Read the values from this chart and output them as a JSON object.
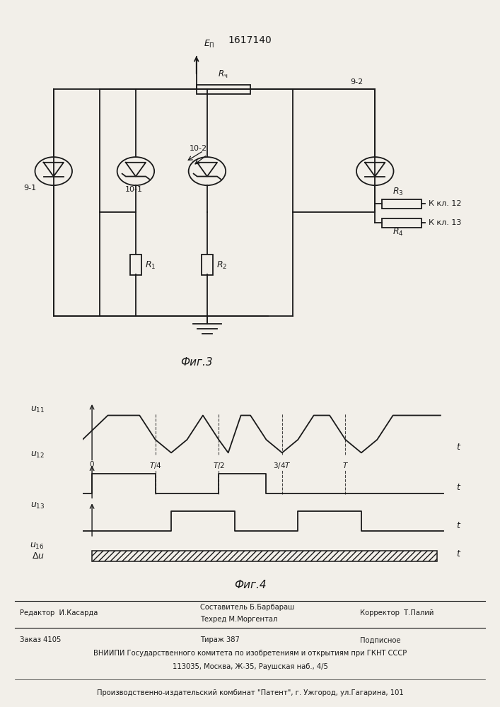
{
  "title": "1617140",
  "fig3_caption": "Фиг.3",
  "fig4_caption": "Фиг.4",
  "bg_color": "#f2efe9",
  "line_color": "#1a1a1a",
  "footer_editor": "Редактор  И.Касарда",
  "footer_author": "Составитель Б.Барбараш",
  "footer_tech": "Техред М.Моргентал",
  "footer_corrector": "Корректор  Т.Палий",
  "footer_order": "Заказ 4105",
  "footer_tirazh": "Тираж 387",
  "footer_podp": "Подписное",
  "footer_vniip1": "ВНИИПИ Государственного комитета по изобретениям и открытиям при ГКНТ СССР",
  "footer_vniip2": "113035, Москва, Ж-35, Раушская наб., 4/5",
  "footer_patent": "Производственно-издательский комбинат \"Патент\", г. Ужгород, ул.Гагарина, 101"
}
